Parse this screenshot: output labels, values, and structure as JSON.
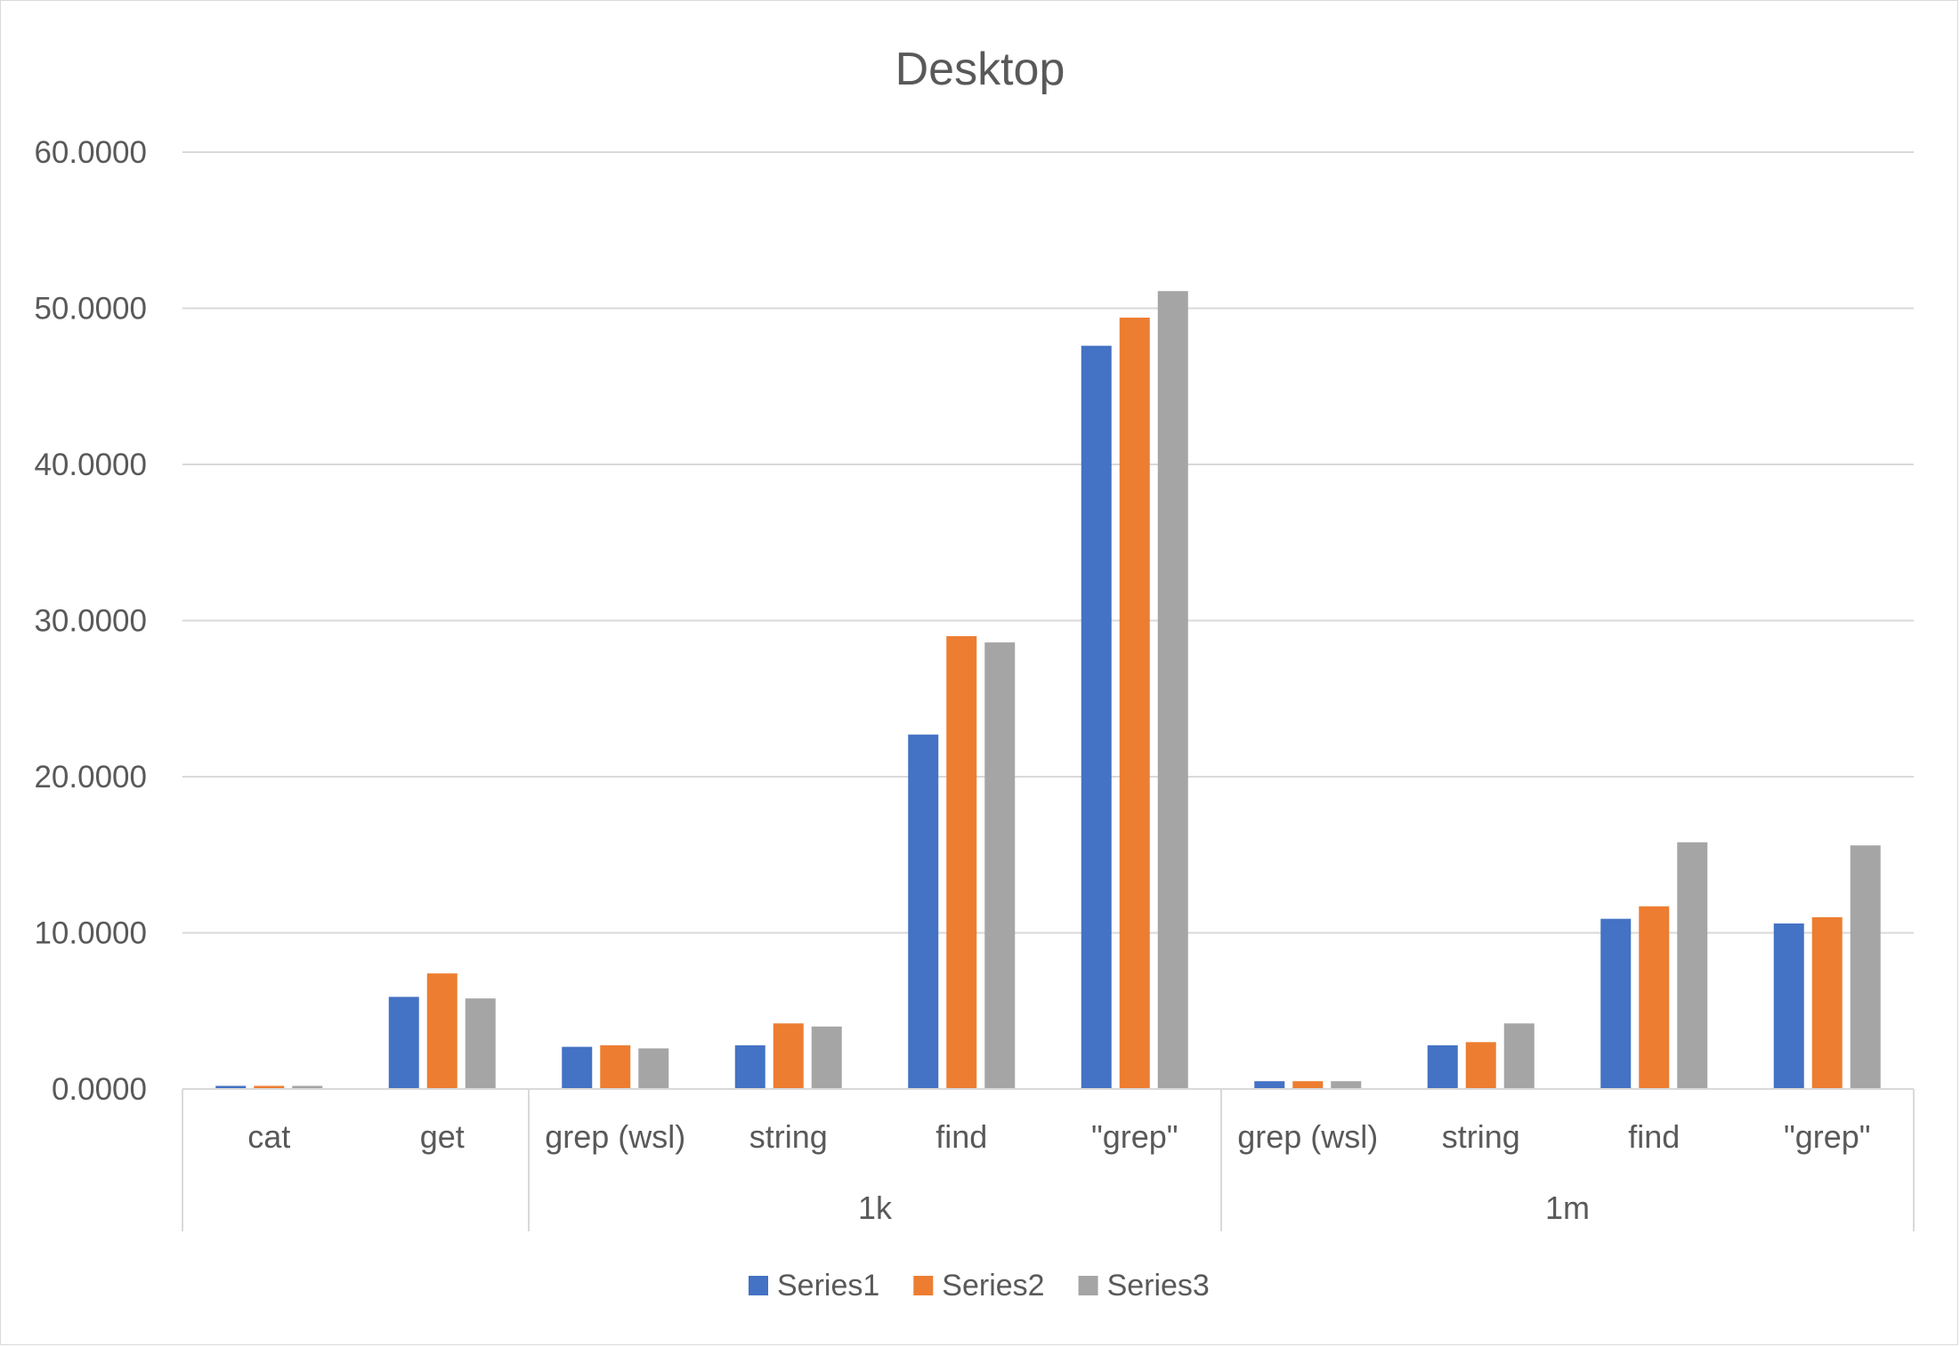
{
  "chart_data": {
    "type": "bar",
    "title": "Desktop",
    "xlabel": "",
    "ylabel": "",
    "ylim": [
      0,
      60
    ],
    "ytick_labels": [
      "0.0000",
      "10.0000",
      "20.0000",
      "30.0000",
      "40.0000",
      "50.0000",
      "60.0000"
    ],
    "yticks": [
      0,
      10,
      20,
      30,
      40,
      50,
      60
    ],
    "grid": true,
    "legend_position": "bottom",
    "categories": [
      "cat",
      "get",
      "grep (wsl)",
      "string",
      "find",
      "\"grep\"",
      "grep (wsl)",
      "string",
      "find",
      "\"grep\""
    ],
    "groups": [
      {
        "label": "",
        "start": 0,
        "end": 1
      },
      {
        "label": "1k",
        "start": 2,
        "end": 5
      },
      {
        "label": "1m",
        "start": 6,
        "end": 9
      }
    ],
    "series": [
      {
        "name": "Series1",
        "color": "#4472C4",
        "values": [
          0.2,
          5.9,
          2.7,
          2.8,
          22.7,
          47.6,
          0.5,
          2.8,
          10.9,
          10.6
        ]
      },
      {
        "name": "Series2",
        "color": "#ED7D31",
        "values": [
          0.2,
          7.4,
          2.8,
          4.2,
          29.0,
          49.4,
          0.5,
          3.0,
          11.7,
          11.0
        ]
      },
      {
        "name": "Series3",
        "color": "#A5A5A5",
        "values": [
          0.2,
          5.8,
          2.6,
          4.0,
          28.6,
          51.1,
          0.5,
          4.2,
          15.8,
          15.6
        ]
      }
    ]
  }
}
